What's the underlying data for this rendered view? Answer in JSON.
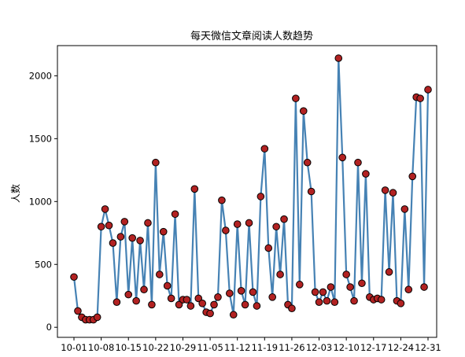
{
  "chart_data": {
    "type": "line",
    "title": "每天微信文章阅读人数趋势",
    "xlabel": "",
    "ylabel": "人数",
    "x": [
      "10-01",
      "10-02",
      "10-03",
      "10-04",
      "10-05",
      "10-06",
      "10-07",
      "10-08",
      "10-09",
      "10-10",
      "10-11",
      "10-12",
      "10-13",
      "10-14",
      "10-15",
      "10-16",
      "10-17",
      "10-18",
      "10-19",
      "10-20",
      "10-21",
      "10-22",
      "10-23",
      "10-24",
      "10-25",
      "10-26",
      "10-27",
      "10-28",
      "10-29",
      "10-30",
      "10-31",
      "11-01",
      "11-02",
      "11-03",
      "11-04",
      "11-05",
      "11-06",
      "11-07",
      "11-08",
      "11-09",
      "11-10",
      "11-11",
      "11-12",
      "11-13",
      "11-14",
      "11-15",
      "11-16",
      "11-17",
      "11-18",
      "11-19",
      "11-20",
      "11-21",
      "11-22",
      "11-23",
      "11-24",
      "11-25",
      "11-26",
      "11-27",
      "11-28",
      "11-29",
      "11-30",
      "12-01",
      "12-02",
      "12-03",
      "12-04",
      "12-05",
      "12-06",
      "12-07",
      "12-08",
      "12-09",
      "12-10",
      "12-11",
      "12-12",
      "12-13",
      "12-14",
      "12-15",
      "12-16",
      "12-17",
      "12-18",
      "12-19",
      "12-20",
      "12-21",
      "12-22",
      "12-23",
      "12-24",
      "12-25",
      "12-26",
      "12-27",
      "12-28",
      "12-29",
      "12-30",
      "12-31"
    ],
    "xticks": [
      "10-01",
      "10-08",
      "10-15",
      "10-22",
      "10-29",
      "11-05",
      "11-12",
      "11-19",
      "11-26",
      "12-03",
      "12-10",
      "12-17",
      "12-24",
      "12-31"
    ],
    "series": [
      {
        "values": [
          400,
          130,
          80,
          60,
          60,
          60,
          80,
          800,
          940,
          810,
          670,
          200,
          720,
          840,
          260,
          710,
          210,
          690,
          300,
          830,
          180,
          1310,
          420,
          760,
          330,
          230,
          900,
          180,
          220,
          220,
          170,
          1100,
          230,
          190,
          120,
          110,
          180,
          240,
          1010,
          770,
          270,
          100,
          820,
          290,
          180,
          830,
          280,
          170,
          1040,
          1420,
          630,
          240,
          800,
          420,
          860,
          180,
          150,
          1820,
          340,
          1720,
          1310,
          1080,
          280,
          200,
          280,
          210,
          320,
          200,
          2140,
          1350,
          420,
          320,
          210,
          1310,
          350,
          1220,
          240,
          220,
          230,
          220,
          1090,
          440,
          1070,
          210,
          190,
          940,
          300,
          1200,
          1830,
          1820,
          320,
          1890
        ],
        "color": "#4682b4",
        "marker_color": "#b22222"
      }
    ],
    "ylim": [
      -80,
      2240
    ],
    "yticks": [
      0,
      500,
      1000,
      1500,
      2000
    ],
    "grid": false,
    "legend": "none"
  }
}
